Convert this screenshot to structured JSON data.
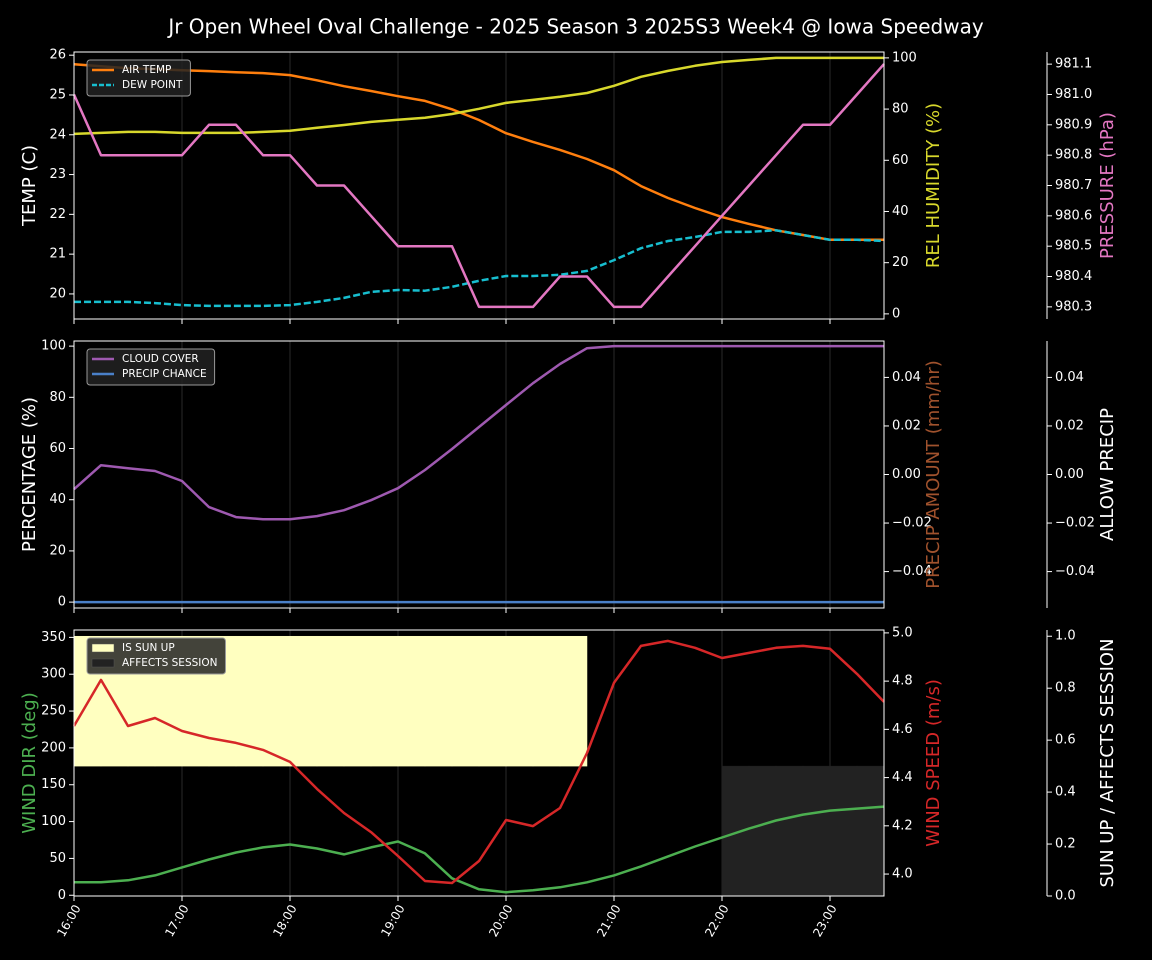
{
  "chart_data": [
    {
      "type": "line",
      "title": "Jr Open Wheel Oval Challenge - 2025 Season 3 2025S3 Week4 @ Iowa Speedway",
      "ylabel": "TEMP (C)",
      "ylabel_color": "#ffffff",
      "ylim": [
        19.37,
        26.08
      ],
      "yticks": [
        20,
        21,
        22,
        23,
        24,
        25,
        26
      ],
      "y2label": "REL HUMIDITY (%)",
      "y2label_color": "#d8d82c",
      "y2lim": [
        -2,
        102.3
      ],
      "y2ticks": [
        0,
        20,
        40,
        60,
        80,
        100
      ],
      "y3label": "PRESSURE (hPa)",
      "y3label_color": "#e377c2",
      "y3lim": [
        980.26,
        981.14
      ],
      "y3ticks": [
        980.3,
        980.4,
        980.5,
        980.6,
        980.7,
        980.8,
        980.9,
        {
          "value": 981,
          "label": "981.0"
        },
        981.1
      ],
      "legend": "upper left",
      "series": [
        {
          "name": "AIR TEMP",
          "color": "#ff7f0e",
          "axis": "y",
          "values": [
            25.77,
            25.72,
            25.67,
            25.65,
            25.62,
            25.6,
            25.57,
            25.55,
            25.5,
            25.37,
            25.22,
            25.1,
            24.97,
            24.85,
            24.64,
            24.37,
            24.04,
            23.82,
            23.62,
            23.39,
            23.11,
            22.71,
            22.41,
            22.16,
            21.93,
            21.76,
            21.6,
            21.48,
            21.36,
            21.36,
            21.36
          ]
        },
        {
          "name": "DEW POINT",
          "color": "#17becf",
          "axis": "y",
          "dashed": true,
          "values": [
            19.8,
            19.8,
            19.8,
            19.77,
            19.72,
            19.7,
            19.7,
            19.7,
            19.72,
            19.8,
            19.9,
            20.05,
            20.1,
            20.08,
            20.18,
            20.33,
            20.45,
            20.45,
            20.48,
            20.58,
            20.85,
            21.15,
            21.33,
            21.43,
            21.56,
            21.56,
            21.6,
            21.48,
            21.36,
            21.36,
            21.33
          ]
        },
        {
          "color": "#d8d82c",
          "axis": "y2",
          "values": [
            70.3,
            70.7,
            71.1,
            71.1,
            70.7,
            70.7,
            70.7,
            71.1,
            71.5,
            72.7,
            73.8,
            75,
            75.8,
            76.6,
            78.1,
            80.1,
            82.4,
            83.6,
            84.8,
            86.3,
            89.1,
            92.6,
            94.9,
            96.9,
            98.4,
            99.2,
            100,
            100,
            100,
            100,
            100
          ]
        },
        {
          "color": "#e377c2",
          "axis": "y3",
          "values": [
            981.0,
            980.8,
            980.8,
            980.8,
            980.8,
            980.9,
            980.9,
            980.8,
            980.8,
            980.7,
            980.7,
            980.6,
            980.5,
            980.5,
            980.5,
            980.3,
            980.3,
            980.3,
            980.4,
            980.4,
            980.3,
            980.3,
            980.4,
            980.5,
            980.6,
            980.7,
            980.8,
            980.9,
            980.9,
            981.0,
            981.1
          ]
        }
      ]
    },
    {
      "type": "line",
      "ylabel": "PERCENTAGE (%)",
      "ylabel_color": "#ffffff",
      "ylim": [
        -2.3,
        102
      ],
      "yticks": [
        0,
        20,
        40,
        60,
        80,
        100
      ],
      "y2label": "PRECIP AMOUNT (mm/hr)",
      "y2label_color": "#a0522d",
      "y2lim": [
        -0.055,
        0.055
      ],
      "y2ticks": [
        {
          "value": -0.04,
          "label": "−0.04"
        },
        {
          "value": -0.02,
          "label": "−0.02"
        },
        {
          "value": 0,
          "label": "0.00"
        },
        0.02,
        0.04
      ],
      "y3label": "ALLOW PRECIP",
      "y3label_color": "#ffffff",
      "y3lim": [
        -0.055,
        0.055
      ],
      "y3ticks": [
        {
          "value": -0.04,
          "label": "−0.04"
        },
        {
          "value": -0.02,
          "label": "−0.02"
        },
        {
          "value": 0,
          "label": "0.00"
        },
        0.02,
        0.04
      ],
      "legend": "upper left",
      "series": [
        {
          "name": "CLOUD COVER",
          "color": "#9e59b0",
          "axis": "y",
          "values": [
            44.1,
            53.5,
            52.3,
            51.2,
            47.3,
            37.1,
            33.2,
            32.4,
            32.4,
            33.6,
            35.9,
            39.8,
            44.5,
            51.6,
            59.8,
            68.4,
            77,
            85.5,
            93,
            99.2,
            100,
            100,
            100,
            100,
            100,
            100,
            100,
            100,
            100,
            100,
            100
          ]
        },
        {
          "name": "PRECIP CHANCE",
          "color": "#4a80c8",
          "axis": "y",
          "values": [
            0,
            0,
            0,
            0,
            0,
            0,
            0,
            0,
            0,
            0,
            0,
            0,
            0,
            0,
            0,
            0,
            0,
            0,
            0,
            0,
            0,
            0,
            0,
            0,
            0,
            0,
            0,
            0,
            0,
            0,
            0
          ]
        }
      ]
    },
    {
      "type": "line",
      "categories": [
        "16:00",
        null,
        null,
        null,
        "17:00",
        null,
        null,
        null,
        "18:00",
        null,
        null,
        null,
        "19:00",
        null,
        null,
        null,
        "20:00",
        null,
        null,
        null,
        "21:00",
        null,
        null,
        null,
        "22:00",
        null,
        null,
        null,
        "23:00",
        null,
        null
      ],
      "ylabel": "WIND DIR (deg)",
      "ylabel_color": "#4caf50",
      "ylim": [
        -1,
        360
      ],
      "yticks": [
        0,
        50,
        100,
        150,
        200,
        250,
        300,
        350
      ],
      "y2label": "WIND SPEED (m/s)",
      "y2label_color": "#d62728",
      "y2lim": [
        3.909,
        5.012
      ],
      "y2ticks": [
        {
          "value": 4,
          "label": "4.0"
        },
        4.2,
        4.4,
        4.6,
        4.8,
        {
          "value": 5,
          "label": "5.0"
        }
      ],
      "y3label": "SUN UP / AFFECTS SESSION",
      "y3label_color": "#ffffff",
      "y3lim": [
        0,
        1.024
      ],
      "y3ticks": [
        {
          "value": 0,
          "label": "0.0"
        },
        0.2,
        0.4,
        0.6,
        0.8,
        {
          "value": 1,
          "label": "1.0"
        }
      ],
      "legend": "upper left",
      "series": [
        {
          "name": "IS SUN UP",
          "color": "#ffffc0",
          "axis": "y3",
          "style": "band",
          "band": [
            0.5,
            1
          ],
          "values": [
            1,
            1,
            1,
            1,
            1,
            1,
            1,
            1,
            1,
            1,
            1,
            1,
            1,
            1,
            1,
            1,
            1,
            1,
            1,
            1,
            0,
            0,
            0,
            0,
            0,
            0,
            0,
            0,
            0,
            0,
            0
          ]
        },
        {
          "name": "AFFECTS SESSION",
          "color": "#222222",
          "axis": "y3",
          "style": "band",
          "band": [
            0,
            0.5
          ],
          "values": [
            0,
            0,
            0,
            0,
            0,
            0,
            0,
            0,
            0,
            0,
            0,
            0,
            0,
            0,
            0,
            0,
            0,
            0,
            0,
            0,
            0,
            0,
            0,
            0,
            1,
            1,
            1,
            1,
            1,
            1,
            1
          ]
        },
        {
          "color": "#4caf50",
          "axis": "y",
          "values": [
            17.6,
            17.6,
            20.3,
            27,
            37.8,
            48.6,
            58,
            64.9,
            68.9,
            63.5,
            55.4,
            64.9,
            73,
            56.8,
            23,
            8.1,
            4.1,
            6.8,
            10.8,
            17.6,
            27,
            39.2,
            52.7,
            66.2,
            78.4,
            90.5,
            101.4,
            109.5,
            114.9,
            117.6,
            120.3
          ]
        },
        {
          "color": "#d62728",
          "axis": "y2",
          "values": [
            4.614,
            4.805,
            4.614,
            4.647,
            4.593,
            4.564,
            4.544,
            4.515,
            4.465,
            4.353,
            4.253,
            4.174,
            4.075,
            3.971,
            3.963,
            4.054,
            4.224,
            4.199,
            4.274,
            4.502,
            4.793,
            4.946,
            4.967,
            4.938,
            4.896,
            4.917,
            4.938,
            4.946,
            4.934,
            4.83,
            4.714
          ]
        }
      ]
    }
  ]
}
